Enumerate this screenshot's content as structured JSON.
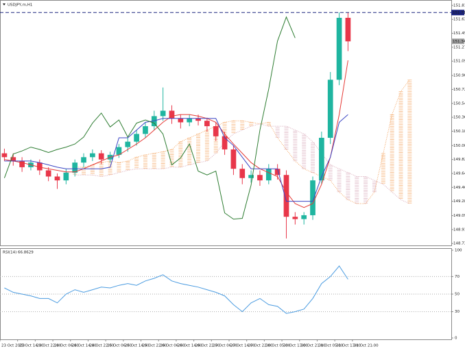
{
  "chart_data": [
    {
      "type": "candlestick",
      "title": "USDJPY,m,H1",
      "open": [
        149.9,
        149.85,
        149.8,
        149.72,
        149.78,
        149.68,
        149.6,
        149.55,
        149.65,
        149.78,
        149.85,
        149.9,
        149.82,
        149.88,
        149.98,
        150.05,
        150.15,
        150.25,
        150.38,
        150.45,
        150.35,
        150.3,
        150.35,
        150.32,
        150.25,
        150.12,
        149.95,
        149.7,
        149.58,
        149.62,
        149.55,
        149.7,
        149.62,
        149.08,
        149.05,
        149.1,
        149.55,
        150.1,
        150.85,
        151.65
      ],
      "high": [
        149.96,
        149.9,
        149.85,
        149.82,
        149.82,
        149.72,
        149.64,
        149.7,
        149.82,
        149.9,
        149.95,
        149.94,
        149.92,
        150.02,
        150.1,
        150.2,
        150.3,
        150.45,
        150.75,
        150.52,
        150.4,
        150.4,
        150.4,
        150.36,
        150.3,
        150.18,
        150.0,
        149.76,
        149.68,
        149.68,
        149.76,
        149.76,
        149.68,
        149.14,
        149.14,
        149.6,
        150.18,
        150.95,
        151.72,
        151.72
      ],
      "low": [
        149.8,
        149.74,
        149.66,
        149.68,
        149.62,
        149.54,
        149.44,
        149.5,
        149.6,
        149.72,
        149.8,
        149.76,
        149.78,
        149.84,
        149.92,
        150.0,
        150.1,
        150.2,
        150.32,
        150.28,
        150.22,
        150.25,
        150.26,
        150.18,
        150.06,
        149.88,
        149.62,
        149.5,
        149.52,
        149.48,
        149.5,
        149.56,
        148.8,
        148.98,
        148.98,
        149.04,
        149.5,
        150.02,
        150.78,
        151.22
      ],
      "close": [
        149.85,
        149.8,
        149.72,
        149.78,
        149.68,
        149.6,
        149.55,
        149.65,
        149.78,
        149.85,
        149.9,
        149.82,
        149.88,
        149.98,
        150.05,
        150.15,
        150.25,
        150.38,
        150.45,
        150.35,
        150.3,
        150.35,
        150.32,
        150.25,
        150.12,
        149.95,
        149.7,
        149.58,
        149.62,
        149.55,
        149.7,
        149.62,
        149.08,
        149.05,
        149.1,
        149.55,
        150.1,
        150.85,
        151.65,
        151.346
      ],
      "up_color": "#1fb5a0",
      "down_color": "#e8374a",
      "lines": [
        {
          "color": "#e53935",
          "values": [
            149.82,
            149.8,
            149.78,
            149.75,
            149.72,
            149.7,
            149.68,
            149.66,
            149.66,
            149.7,
            149.75,
            149.8,
            149.85,
            149.88,
            149.95,
            150.02,
            150.1,
            150.2,
            150.3,
            150.38,
            150.4,
            150.4,
            150.38,
            150.35,
            150.3,
            150.15,
            150.02,
            149.9,
            149.78,
            149.7,
            149.65,
            149.6,
            149.4,
            149.25,
            149.2,
            149.25,
            149.5,
            149.85,
            150.4,
            151.1
          ]
        },
        {
          "color": "#3b45c4",
          "values": [
            149.8,
            149.8,
            149.8,
            149.8,
            149.78,
            149.75,
            149.72,
            149.7,
            149.7,
            149.7,
            149.7,
            149.7,
            149.72,
            150.1,
            150.1,
            150.2,
            150.3,
            150.32,
            150.35,
            150.35,
            150.35,
            150.35,
            150.35,
            150.35,
            150.35,
            150.1,
            150.0,
            149.85,
            149.7,
            149.7,
            149.7,
            149.7,
            149.28,
            149.28,
            149.28,
            149.28,
            149.6,
            149.85,
            150.3,
            150.4
          ]
        },
        {
          "color": "#2e7d32",
          "values": [
            149.58,
            149.89,
            149.93,
            149.98,
            149.95,
            149.91,
            149.95,
            149.98,
            150.02,
            150.11,
            150.29,
            150.42,
            150.24,
            150.33,
            150.11,
            150.29,
            150.33,
            150.29,
            150.15,
            149.75,
            149.84,
            150.02,
            149.67,
            149.62,
            149.67,
            149.13,
            149.05,
            149.06,
            149.49,
            150.2,
            150.73,
            151.35,
            151.66,
            151.39,
            null,
            null,
            null,
            null,
            null,
            null
          ]
        }
      ],
      "cloud": {
        "up_color": "#f4a460",
        "down_color": "#d8a8b8",
        "a": [
          null,
          null,
          null,
          null,
          null,
          null,
          null,
          null,
          149.72,
          149.72,
          149.75,
          149.78,
          149.8,
          149.78,
          149.8,
          149.85,
          149.88,
          149.9,
          149.92,
          149.95,
          150.05,
          150.1,
          150.15,
          150.2,
          150.25,
          150.3,
          150.32,
          150.32,
          150.3,
          150.28,
          150.3,
          150.1,
          149.95,
          149.8,
          149.7,
          149.65,
          149.6,
          149.55,
          149.4,
          149.3,
          149.25,
          149.25,
          149.4,
          149.9,
          150.4,
          150.7,
          150.85
        ],
        "b": [
          null,
          null,
          null,
          null,
          null,
          null,
          null,
          null,
          149.62,
          149.62,
          149.62,
          149.6,
          149.62,
          149.65,
          149.68,
          149.7,
          149.7,
          149.7,
          149.7,
          149.72,
          149.72,
          149.75,
          149.78,
          149.8,
          149.9,
          150.05,
          150.15,
          150.2,
          150.25,
          150.28,
          150.25,
          150.25,
          150.25,
          150.2,
          150.15,
          150.05,
          149.9,
          149.75,
          149.7,
          149.65,
          149.6,
          149.6,
          149.55,
          149.5,
          149.4,
          149.3,
          149.25
        ]
      },
      "hline": 151.718,
      "last_price": 151.346,
      "ylim": [
        148.71,
        151.88
      ],
      "yticks": [
        {
          "value": 151.81,
          "label": "151.810"
        },
        {
          "value": 151.63,
          "label": "151.630"
        },
        {
          "value": 151.45,
          "label": "151.450"
        },
        {
          "value": 151.27,
          "label": "151.270"
        },
        {
          "value": 151.09,
          "label": "151.090"
        },
        150.905,
        150.725,
        150.545,
        150.365,
        150.185,
        {
          "value": 150,
          "label": "150.000"
        },
        {
          "value": 149.82,
          "label": "149.820"
        },
        {
          "value": 149.64,
          "label": "149.640"
        },
        {
          "value": 149.46,
          "label": "149.460"
        },
        {
          "value": 149.28,
          "label": "149.280"
        },
        149.095,
        148.915,
        148.735
      ],
      "xlim": [
        0,
        50.6
      ],
      "xticks": [
        {
          "value": 0,
          "label": "23 Oct 2023"
        },
        {
          "value": 2,
          "label": "23 Oct 14:00"
        },
        {
          "value": 4,
          "label": "23 Oct 22:00"
        },
        {
          "value": 6,
          "label": "24 Oct 06:00"
        },
        {
          "value": 8,
          "label": "24 Oct 14:00"
        },
        {
          "value": 10,
          "label": "24 Oct 22:00"
        },
        {
          "value": 12,
          "label": "25 Oct 06:00"
        },
        {
          "value": 14,
          "label": "25 Oct 14:00"
        },
        {
          "value": 16,
          "label": "25 Oct 22:00"
        },
        {
          "value": 18,
          "label": "26 Oct 06:00"
        },
        {
          "value": 20,
          "label": "26 Oct 14:00"
        },
        {
          "value": 22,
          "label": "26 Oct 22:00"
        },
        {
          "value": 24,
          "label": "27 Oct 06:00"
        },
        {
          "value": 26,
          "label": "27 Oct 14:00"
        },
        {
          "value": 28,
          "label": "27 Oct 22:00"
        },
        {
          "value": 30,
          "label": "30 Oct 05:00"
        },
        {
          "value": 32,
          "label": "30 Oct 13:00"
        },
        {
          "value": 34,
          "label": "30 Oct 21:00"
        },
        {
          "value": 36,
          "label": "31 Oct 05:00"
        },
        {
          "value": 38,
          "label": "31 Oct 13:00"
        },
        {
          "value": 40,
          "label": "31 Oct 21:00"
        }
      ]
    },
    {
      "type": "line",
      "title": "RSI(14) 66.8629",
      "color": "#4a9be0",
      "values": [
        57,
        52,
        50,
        48,
        45,
        45,
        40,
        50,
        55,
        52,
        55,
        58,
        57,
        60,
        62,
        60,
        65,
        68,
        72,
        65,
        62,
        60,
        58,
        55,
        52,
        48,
        38,
        30,
        40,
        45,
        38,
        36,
        28,
        30,
        33,
        45,
        62,
        70,
        82,
        66.8629
      ],
      "ylim": [
        0,
        100
      ],
      "yticks": [
        0,
        30,
        50,
        70,
        100
      ],
      "levels": [
        30,
        50,
        70
      ]
    }
  ]
}
